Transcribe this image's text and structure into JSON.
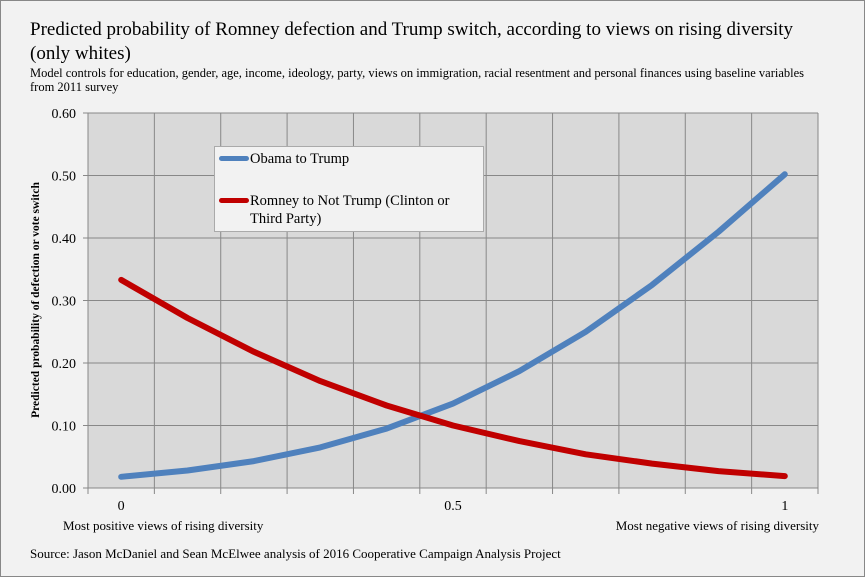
{
  "chart_data": {
    "type": "line",
    "title": "Predicted probability of Romney defection and Trump switch, according to views on rising diversity (only whites)",
    "subtitle": "Model controls for education, gender, age, income, ideology, party, views on immigration, racial resentment and personal finances using baseline variables from 2011 survey",
    "ylabel": "Predicted probability of defection or vote switch",
    "xlabel_left": "Most positive views of rising diversity",
    "xlabel_right": "Most negative views of rising diversity",
    "source": "Source: Jason McDaniel and Sean McElwee analysis of 2016 Cooperative Campaign Analysis Project",
    "xlim": [
      -0.05,
      1.05
    ],
    "ylim": [
      0,
      0.6
    ],
    "x_ticks": [
      "0",
      "0.5",
      "1"
    ],
    "x_tick_values": [
      0,
      0.5,
      1
    ],
    "y_ticks": [
      "0.00",
      "0.10",
      "0.20",
      "0.30",
      "0.40",
      "0.50",
      "0.60"
    ],
    "grid": true,
    "legend_placement": "top-left",
    "x": [
      0,
      0.1,
      0.2,
      0.3,
      0.4,
      0.5,
      0.6,
      0.7,
      0.8,
      0.9,
      1
    ],
    "series": [
      {
        "name": "Obama to Trump",
        "color": "#4f81bd",
        "values": [
          0.018,
          0.028,
          0.043,
          0.065,
          0.095,
          0.135,
          0.187,
          0.25,
          0.325,
          0.41,
          0.502
        ]
      },
      {
        "name": "Romney to Not Trump (Clinton or Third Party)",
        "color": "#c00000",
        "values": [
          0.333,
          0.272,
          0.218,
          0.171,
          0.132,
          0.1,
          0.075,
          0.054,
          0.039,
          0.027,
          0.019
        ]
      }
    ]
  }
}
